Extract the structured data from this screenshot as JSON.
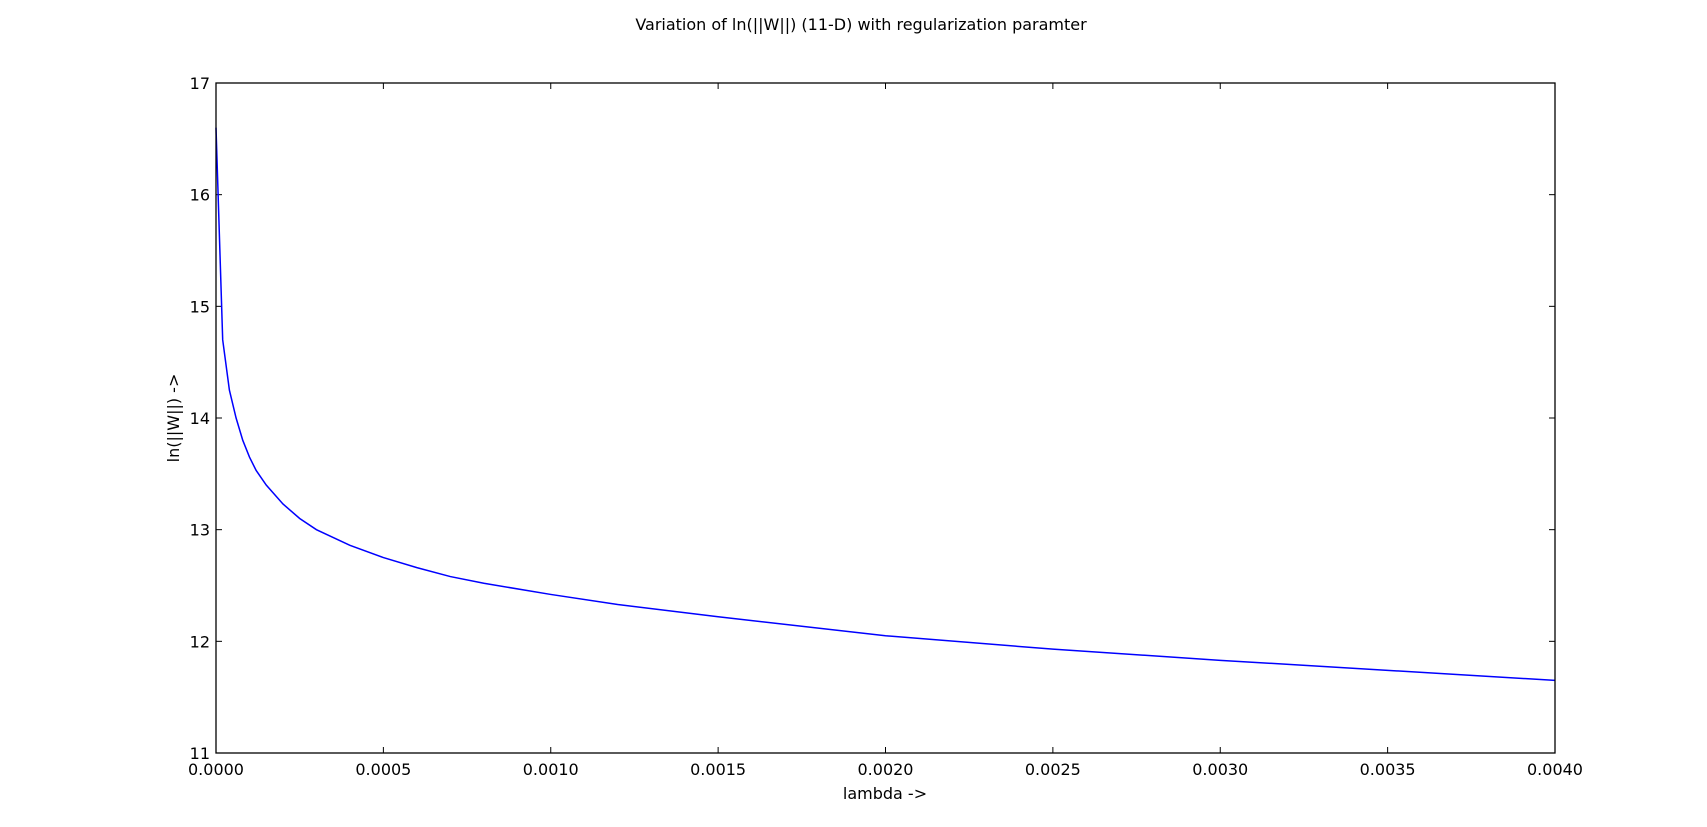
{
  "chart_data": {
    "type": "line",
    "title": "Variation of ln(||W||) (11-D) with regularization paramter",
    "xlabel": "lambda ->",
    "ylabel": "ln(||W||) ->",
    "xlim": [
      0.0,
      0.004
    ],
    "ylim": [
      11,
      17
    ],
    "x_ticks": [
      0.0,
      0.0005,
      0.001,
      0.0015,
      0.002,
      0.0025,
      0.003,
      0.0035,
      0.004
    ],
    "x_tick_labels": [
      "0.0000",
      "0.0005",
      "0.0010",
      "0.0015",
      "0.0020",
      "0.0025",
      "0.0030",
      "0.0035",
      "0.0040"
    ],
    "y_ticks": [
      11,
      12,
      13,
      14,
      15,
      16,
      17
    ],
    "y_tick_labels": [
      "11",
      "12",
      "13",
      "14",
      "15",
      "16",
      "17"
    ],
    "grid": false,
    "series": [
      {
        "color": "#0000ff",
        "x": [
          0.0,
          2e-05,
          4e-05,
          6e-05,
          8e-05,
          0.0001,
          0.00012,
          0.00015,
          0.0002,
          0.00025,
          0.0003,
          0.0004,
          0.0005,
          0.0006,
          0.0007,
          0.0008,
          0.001,
          0.0012,
          0.0015,
          0.002,
          0.0025,
          0.003,
          0.0035,
          0.004
        ],
        "y": [
          16.6,
          14.7,
          14.25,
          14.0,
          13.8,
          13.65,
          13.53,
          13.4,
          13.23,
          13.1,
          13.0,
          12.86,
          12.75,
          12.66,
          12.58,
          12.52,
          12.42,
          12.33,
          12.22,
          12.05,
          11.93,
          11.83,
          11.74,
          11.65
        ]
      }
    ]
  }
}
